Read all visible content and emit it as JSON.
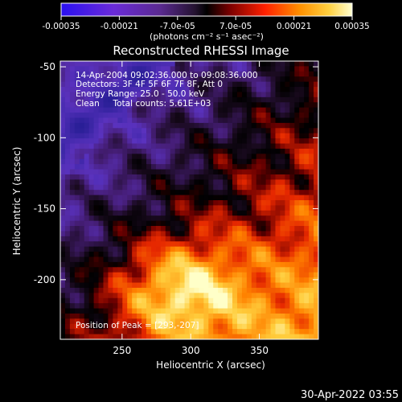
{
  "chart_data": {
    "type": "heatmap",
    "title": "Reconstructed RHESSI Image",
    "xlabel": "Heliocentric X (arcsec)",
    "ylabel": "Heliocentric Y (arcsec)",
    "xlim": [
      205,
      393
    ],
    "ylim": [
      -242,
      -46
    ],
    "x_ticks": [
      250,
      300,
      350
    ],
    "y_ticks": [
      -50,
      -100,
      -150,
      -200
    ],
    "colorbar": {
      "unit_label": "(photons cm⁻² s⁻¹ asec⁻²)",
      "range": [
        -0.00035,
        0.00035
      ],
      "tick_labels": [
        "-0.00035",
        "-0.00021",
        "-7.0e-05",
        "7.0e-05",
        "0.00021",
        "0.00035"
      ]
    },
    "annotations": [
      "14-Apr-2004 09:02:36.000 to 09:08:36.000",
      "Detectors: 3F 4F 5F 6F 7F 8F, Att 0",
      "Energy Range: 25.0 - 50.0 keV",
      "Clean     Total counts: 5.61E+03"
    ],
    "peak_label": "Position of Peak = [293,-207]",
    "peak_position": [
      293,
      -207
    ]
  },
  "footer": {
    "date": "30-Apr-2022 03:55"
  }
}
